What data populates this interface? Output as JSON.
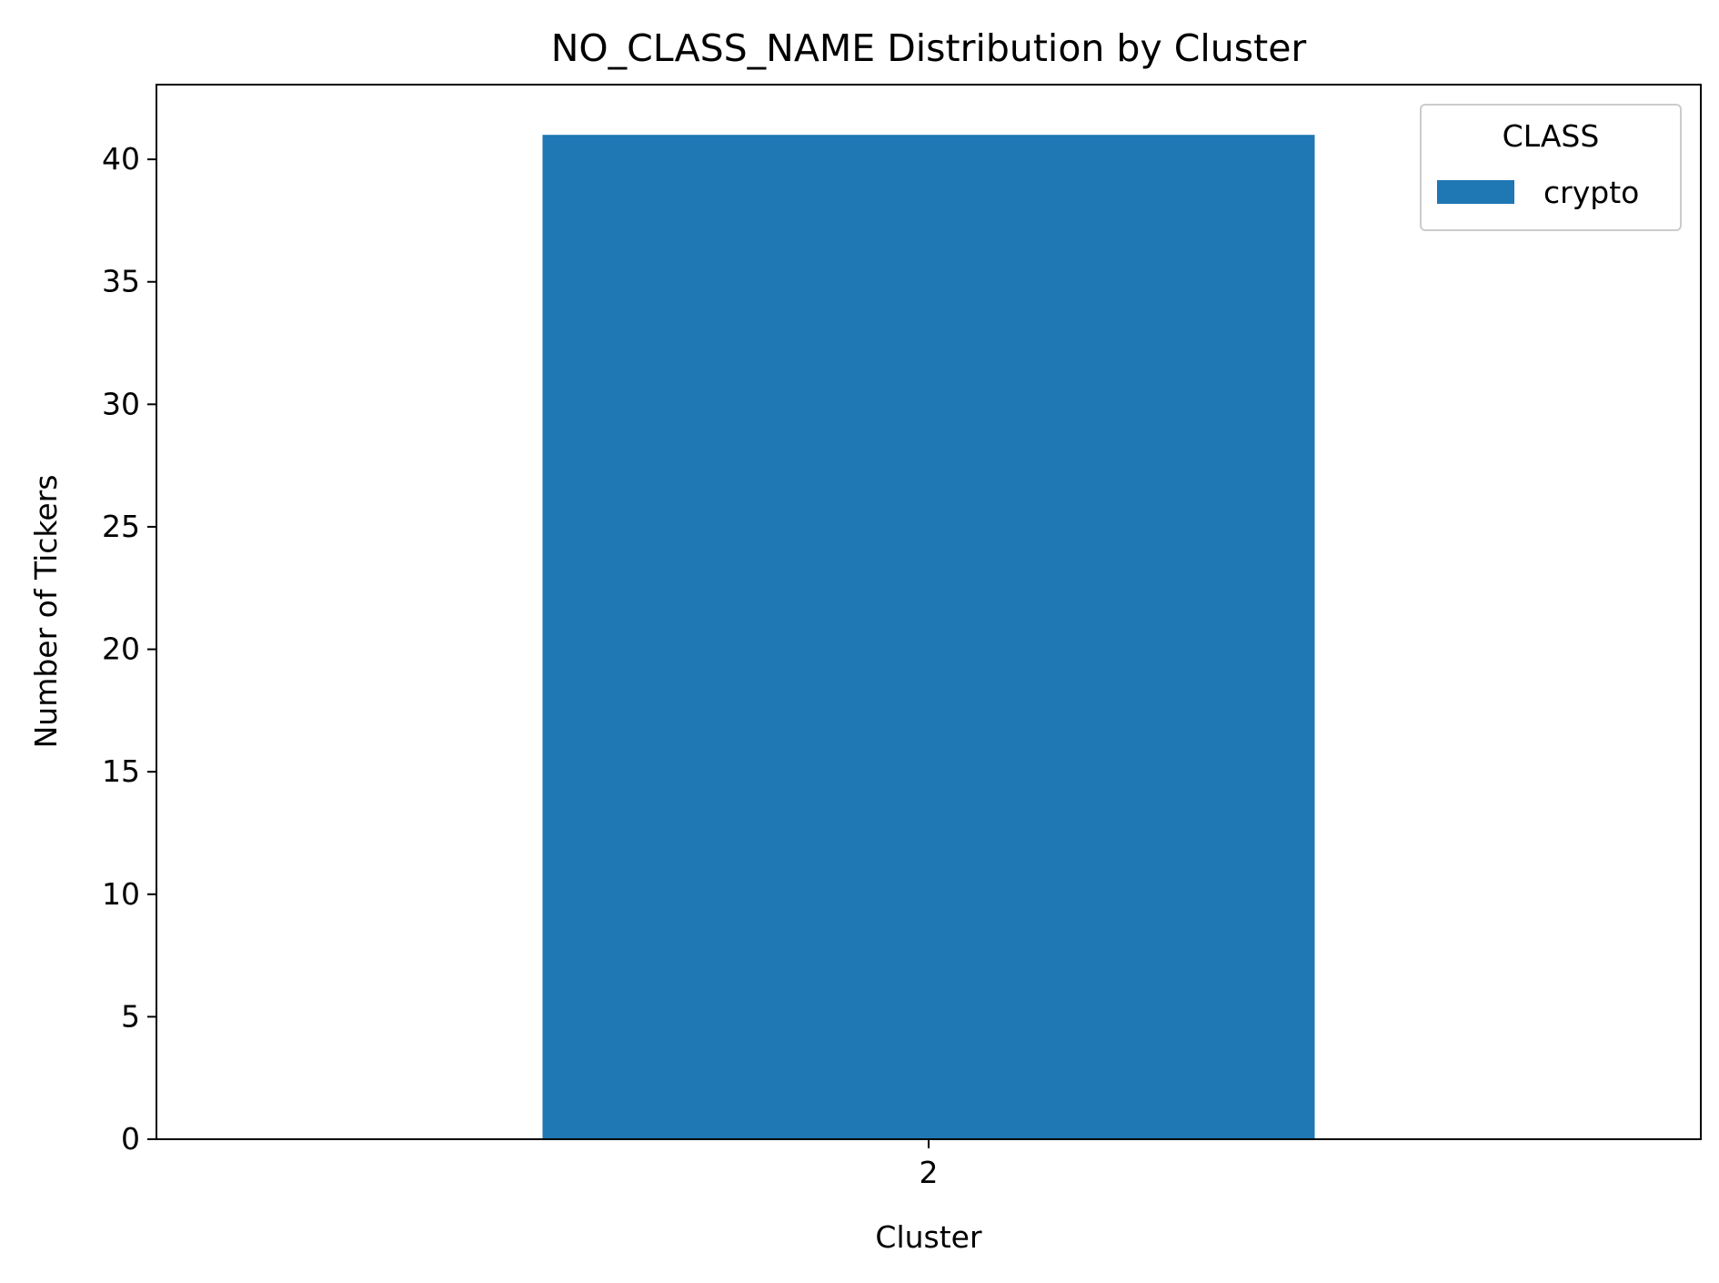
{
  "chart_data": {
    "type": "bar",
    "title": "NO_CLASS_NAME Distribution by Cluster",
    "xlabel": "Cluster",
    "ylabel": "Number of Tickers",
    "categories": [
      "2"
    ],
    "series": [
      {
        "name": "crypto",
        "values": [
          41
        ]
      }
    ],
    "ylim": [
      0,
      43.05
    ],
    "yticks": [
      0,
      5,
      10,
      15,
      20,
      25,
      30,
      35,
      40
    ],
    "legend": {
      "title": "CLASS",
      "placement": "top-right"
    },
    "grid": false,
    "colors": {
      "crypto": "#1f77b4"
    }
  }
}
